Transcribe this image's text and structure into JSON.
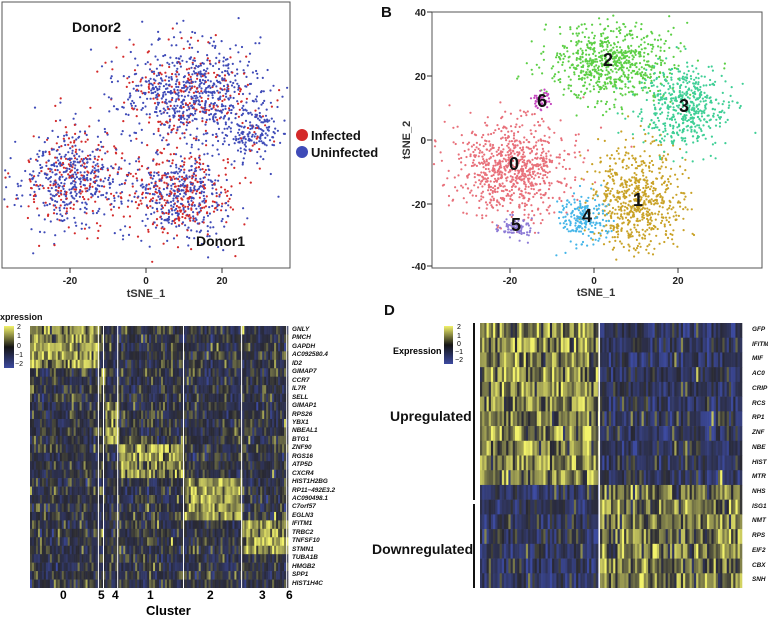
{
  "figure": {
    "panels": [
      "B",
      "D"
    ]
  },
  "panelA": {
    "label_donor2": "Donor2",
    "label_donor1": "Donor1",
    "xlabel": "tSNE_1",
    "xticks": [
      "-20",
      "0",
      "20"
    ],
    "legend": [
      {
        "label": "Infected",
        "color": "#d42a2a"
      },
      {
        "label": "Uninfected",
        "color": "#3f4bb8"
      }
    ]
  },
  "panelB": {
    "letter": "B",
    "xlabel": "tSNE_1",
    "ylabel": "tSNE_2",
    "xticks": [
      "-20",
      "0",
      "20"
    ],
    "yticks": [
      "40",
      "20",
      "0",
      "-20",
      "-40"
    ],
    "clusters": [
      {
        "id": "0",
        "color": "#e8707a"
      },
      {
        "id": "1",
        "color": "#c9a227"
      },
      {
        "id": "2",
        "color": "#5ccf45"
      },
      {
        "id": "3",
        "color": "#3fcf96"
      },
      {
        "id": "4",
        "color": "#44b5e8"
      },
      {
        "id": "5",
        "color": "#8d7bd6"
      },
      {
        "id": "6",
        "color": "#c548c0"
      }
    ]
  },
  "panelC": {
    "legend_title": "xpression",
    "legend_ticks": [
      "2",
      "1",
      "0",
      "−1",
      "−2"
    ],
    "xlabel": "Cluster",
    "cluster_labels": [
      "0",
      "5",
      "4",
      "1",
      "2",
      "3",
      "6"
    ],
    "genes": [
      "GNLY",
      "PMCH",
      "GAPDH",
      "AC092580.4",
      "ID2",
      "GIMAP7",
      "CCR7",
      "IL7R",
      "SELL",
      "GIMAP1",
      "RPS26",
      "YBX1",
      "NBEAL1",
      "BTG1",
      "ZNF90",
      "RGS16",
      "ATP5D",
      "CXCR4",
      "HIST1H2BG",
      "RP11−492E3.2",
      "AC090498.1",
      "C7orf57",
      "EGLN3",
      "IFITM1",
      "TRBC2",
      "TNFSF10",
      "STMN1",
      "TUBA1B",
      "HMGB2",
      "SPP1",
      "HIST1H4C"
    ]
  },
  "panelD": {
    "letter": "D",
    "legend_title": "Expression",
    "legend_ticks": [
      "2",
      "1",
      "0",
      "−1",
      "−2"
    ],
    "group_up": "Upregulated",
    "group_down": "Downregulated",
    "genes": [
      "GFP",
      "IFITM",
      "MIF",
      "AC0",
      "CRIP",
      "RCS",
      "RP1",
      "ZNF",
      "NBE",
      "HIST",
      "MTR",
      "NHS",
      "ISG1",
      "NMT",
      "RPS",
      "EIF2",
      "CBX",
      "SNH"
    ]
  },
  "colors": {
    "heat_low": "#3c4aa0",
    "heat_mid": "#151515",
    "heat_high": "#f2f26a",
    "heat_dim": "#6b6c7a"
  }
}
